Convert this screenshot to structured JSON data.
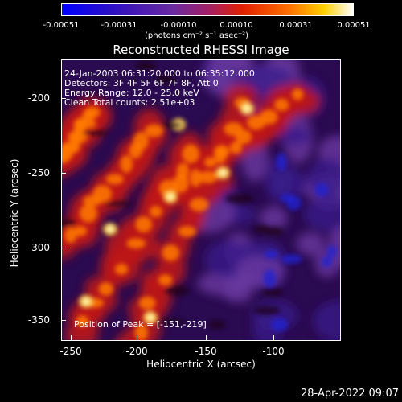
{
  "colorbar": {
    "ticks": [
      "-0.00051",
      "-0.00031",
      "-0.00010",
      "0.00010",
      "0.00031",
      "0.00051"
    ],
    "units": "(photons cm⁻² s⁻¹ asec⁻²)"
  },
  "title": "Reconstructed RHESSI Image",
  "info": {
    "line1": "24-Jan-2003 06:31:20.000 to 06:35:12.000",
    "line2": "Detectors: 3F 4F 5F 6F 7F 8F, Att 0",
    "line3": "Energy Range: 12.0 - 25.0 keV",
    "line4": "Clean     Total counts: 2.51e+03"
  },
  "peak": "Position of Peak = [-151,-219]",
  "axes": {
    "xlabel": "Heliocentric X (arcsec)",
    "ylabel": "Heliocentric Y (arcsec)",
    "xticks": [
      "-250",
      "-200",
      "-150",
      "-100"
    ],
    "yticks": [
      "-200",
      "-250",
      "-300",
      "-350"
    ]
  },
  "date": "28-Apr-2022 09:07",
  "colors": {
    "low": "#0000ff",
    "mid": "#5a2a8a",
    "high": "#ff3000",
    "peak": "#ffffa0"
  }
}
